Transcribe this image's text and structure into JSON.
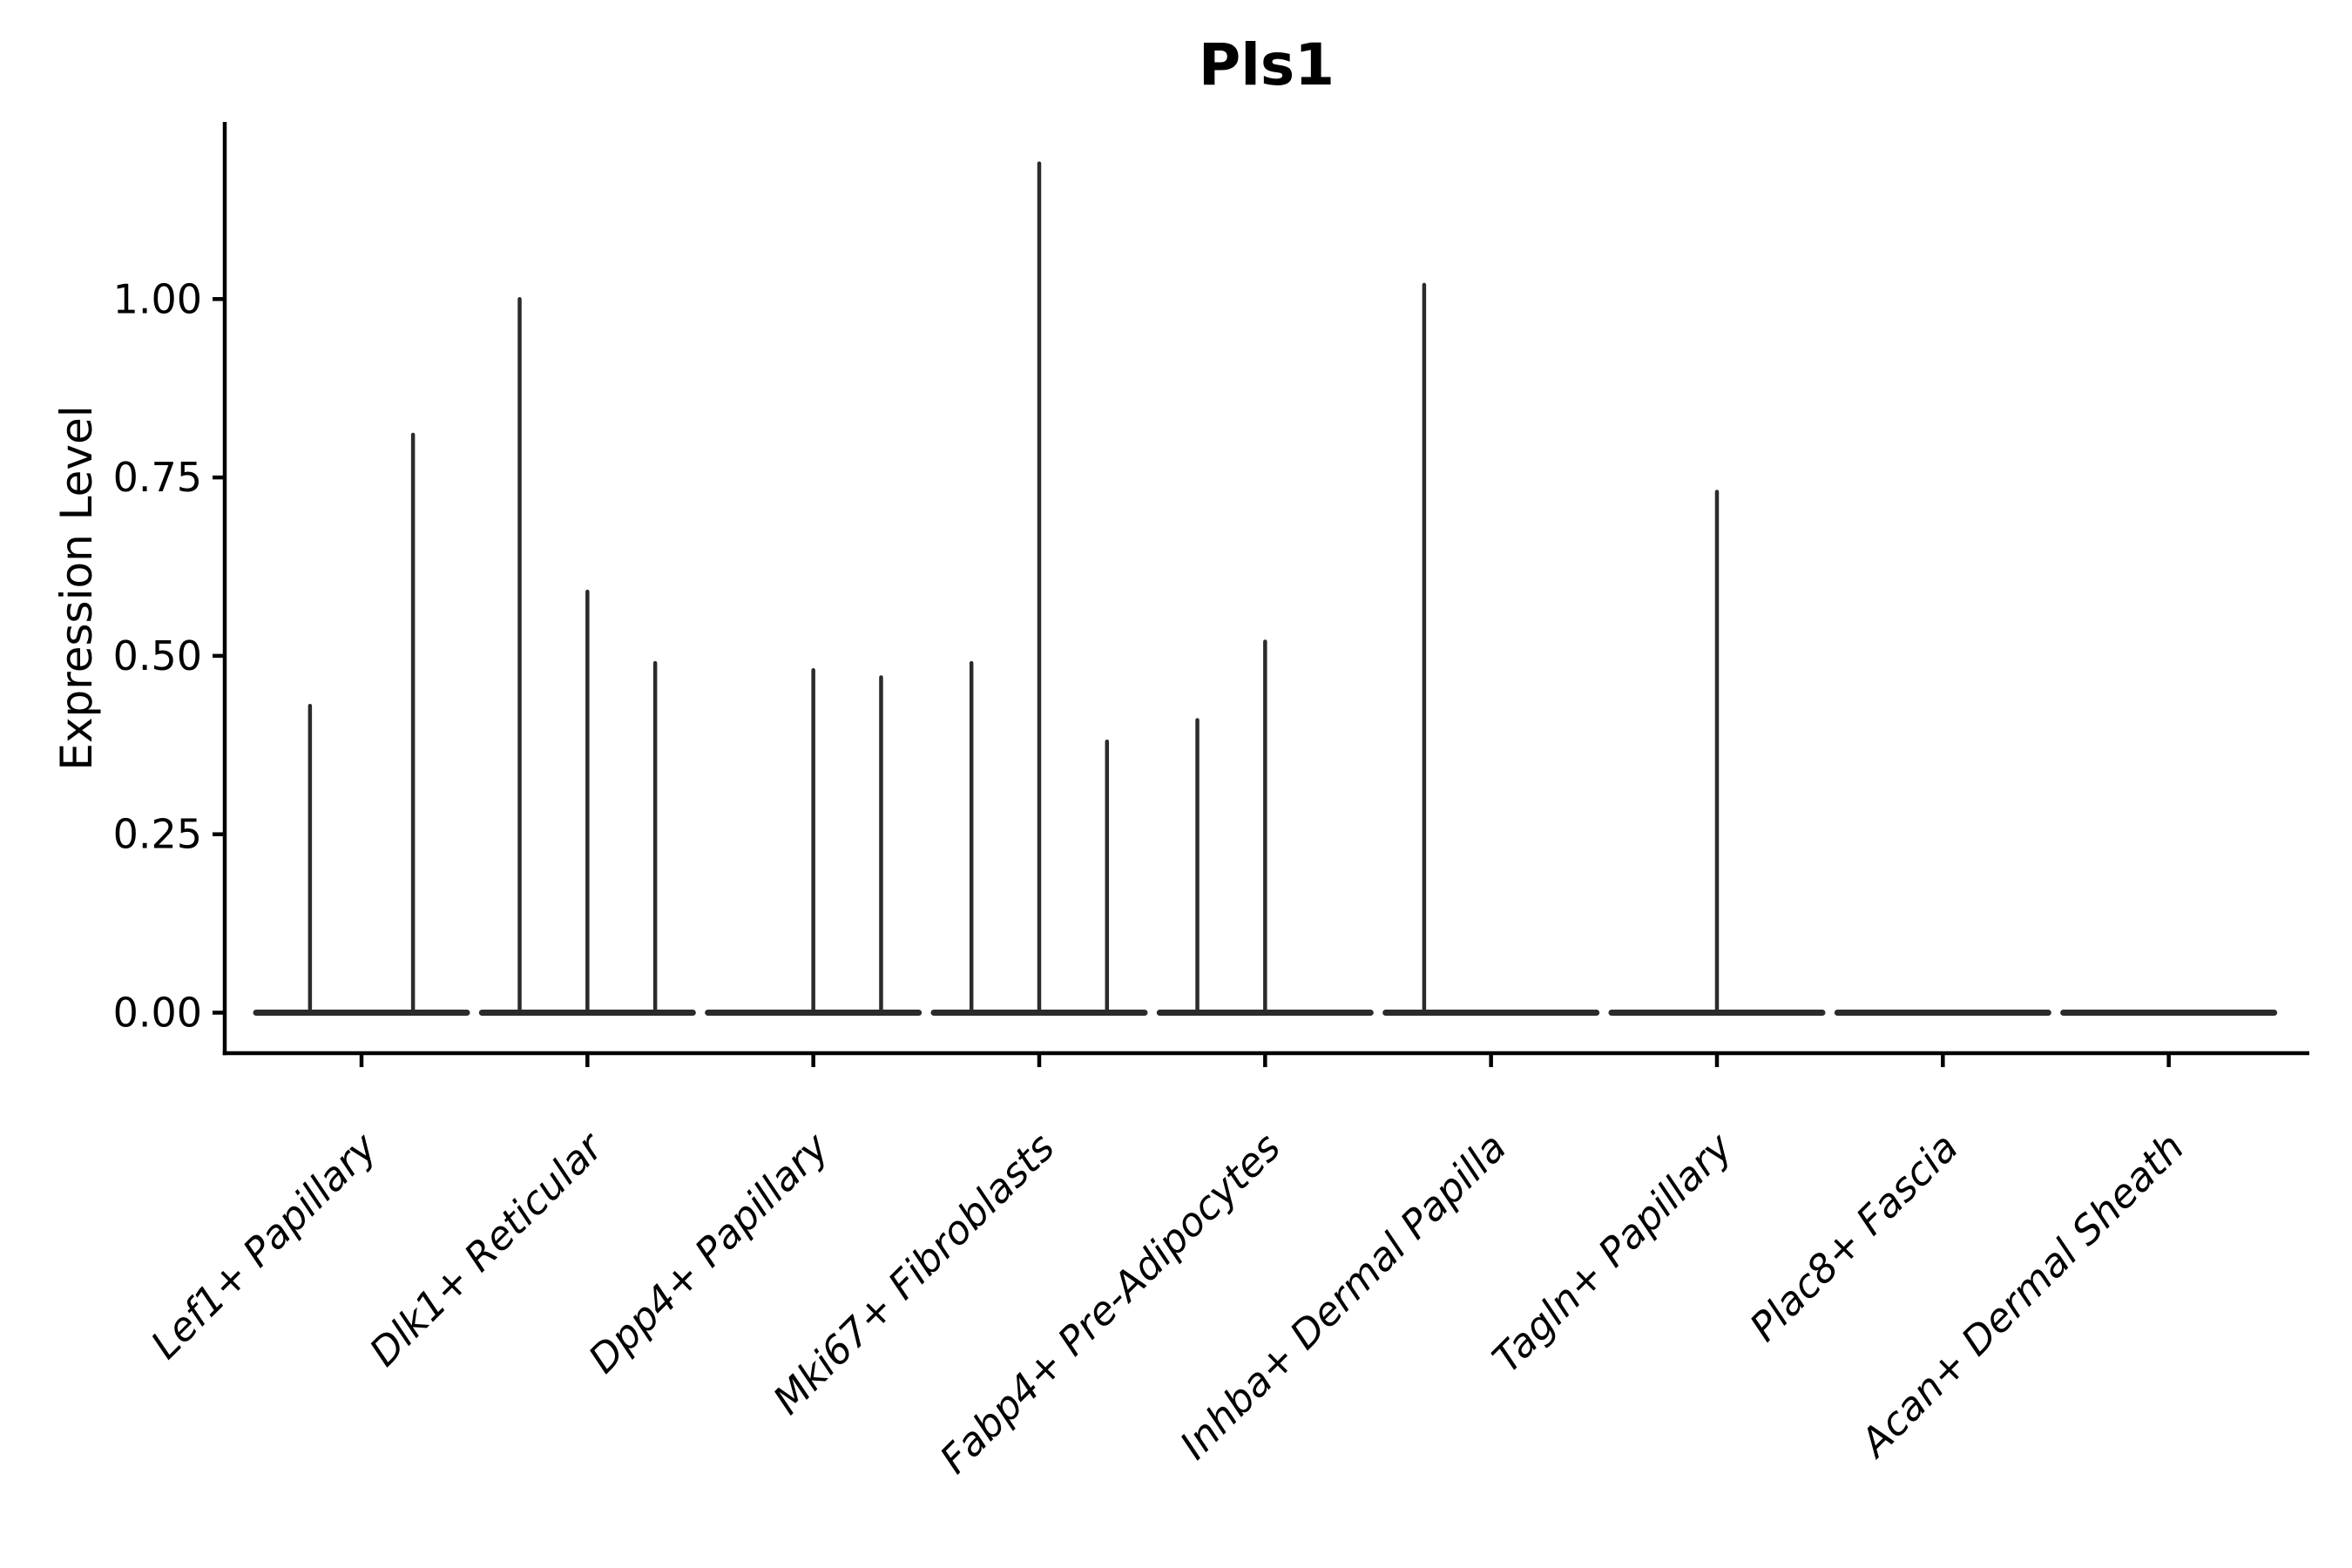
{
  "chart_data": {
    "type": "violin",
    "title": "Pls1",
    "xlabel": "",
    "ylabel": "Expression Level",
    "ylim": [
      0,
      1.25
    ],
    "grid": false,
    "legend": false,
    "y_ticks": [
      "0.00",
      "0.25",
      "0.50",
      "0.75",
      "1.00"
    ],
    "y_tick_values": [
      0,
      0.25,
      0.5,
      0.75,
      1.0
    ],
    "categories": [
      "Lef1+ Papillary",
      "Dlk1+ Reticular",
      "Dpp4+ Papillary",
      "Mki67+ Fibroblasts",
      "Fabp4+ Pre-Adipocytes",
      "Inhba+ Dermal Papilla",
      "Tagln+ Papillary",
      "Plac8+ Fascia",
      "Acan+ Dermal Sheath"
    ],
    "series": [
      {
        "category": "Lef1+ Papillary",
        "violins": [
          {
            "offset": -0.228,
            "peak": 0.43
          },
          {
            "offset": 0.228,
            "peak": 0.81
          }
        ]
      },
      {
        "category": "Dlk1+ Reticular",
        "violins": [
          {
            "offset": -0.3,
            "peak": 1.0
          },
          {
            "offset": 0.0,
            "peak": 0.59
          },
          {
            "offset": 0.3,
            "peak": 0.49
          }
        ]
      },
      {
        "category": "Dpp4+ Papillary",
        "violins": [
          {
            "offset": 0.0,
            "peak": 0.48
          },
          {
            "offset": 0.3,
            "peak": 0.47
          }
        ]
      },
      {
        "category": "Mki67+ Fibroblasts",
        "violins": [
          {
            "offset": -0.3,
            "peak": 0.49
          },
          {
            "offset": 0.0,
            "peak": 1.19
          },
          {
            "offset": 0.3,
            "peak": 0.38
          }
        ]
      },
      {
        "category": "Fabp4+ Pre-Adipocytes",
        "violins": [
          {
            "offset": -0.3,
            "peak": 0.41
          },
          {
            "offset": 0.0,
            "peak": 0.52
          }
        ]
      },
      {
        "category": "Inhba+ Dermal Papilla",
        "violins": [
          {
            "offset": -0.296,
            "peak": 1.02
          }
        ]
      },
      {
        "category": "Tagln+ Papillary",
        "violins": [
          {
            "offset": 0.0,
            "peak": 0.73
          }
        ]
      },
      {
        "category": "Plac8+ Fascia",
        "violins": []
      },
      {
        "category": "Acan+ Dermal Sheath",
        "violins": []
      }
    ],
    "style": {
      "violin_color": "#2b2b2b",
      "axis_color": "#000000",
      "background": "#ffffff"
    }
  }
}
